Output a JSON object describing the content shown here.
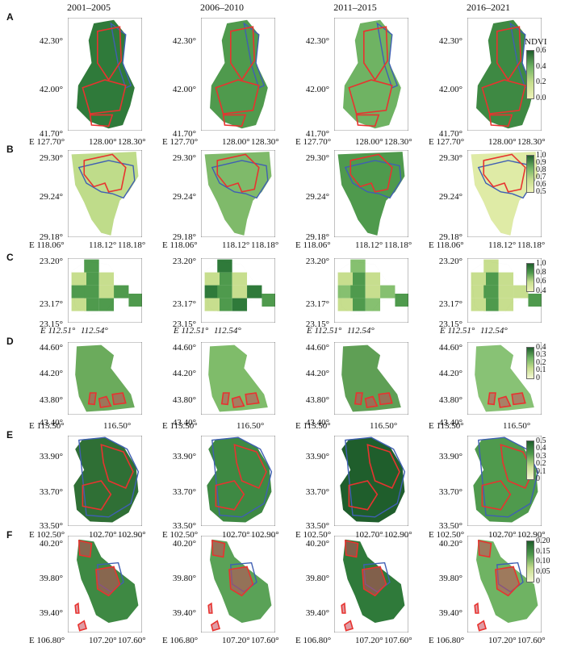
{
  "columns": [
    "2001–2005",
    "2006–2010",
    "2011–2015",
    "2016–2021"
  ],
  "colorbar_title": "NDVI",
  "colors": {
    "ndvi_dark": "#1f5e2c",
    "ndvi_mid": "#4f9a4d",
    "ndvi_light": "#c7de8e",
    "ndvi_pale": "#eef3b7",
    "boundary_black": "#111111",
    "boundary_red": "#e8332f",
    "boundary_blue": "#3f5fb3"
  },
  "rows": [
    {
      "letter": "A",
      "y_ticks": [
        "42.30°",
        "42.00°",
        "41.70°"
      ],
      "x_ticks": [
        "E 127.70°",
        "128.00°",
        "128.30°"
      ],
      "cb_ticks": [
        "0.6",
        "0.4",
        "0.2",
        "0.0"
      ],
      "show_title": true
    },
    {
      "letter": "B",
      "y_ticks": [
        "29.30°",
        "29.24°",
        "29.18°"
      ],
      "x_ticks": [
        "E 118.06°",
        "118.12°",
        "118.18°"
      ],
      "cb_ticks": [
        "1.0",
        "0.9",
        "0.8",
        "0.7",
        "0.6",
        "0.5"
      ],
      "show_title": false
    },
    {
      "letter": "C",
      "y_ticks": [
        "23.20°",
        "23.17°",
        "23.15°"
      ],
      "x_ticks": [
        "E 112.51°",
        "112.54°"
      ],
      "cb_ticks": [
        "1.0",
        "0.8",
        "0.6",
        "0.4"
      ],
      "show_title": false
    },
    {
      "letter": "D",
      "y_ticks": [
        "44.60°",
        "44.20°",
        "43.80°",
        "43.40°"
      ],
      "x_ticks": [
        "E 115.50°",
        "116.50°"
      ],
      "cb_ticks": [
        "0.4",
        "0.3",
        "0.2",
        "0.1",
        "0"
      ],
      "show_title": false
    },
    {
      "letter": "E",
      "y_ticks": [
        "33.90°",
        "33.70°",
        "33.50°"
      ],
      "x_ticks": [
        "E 102.50°",
        "102.70°",
        "102.90°"
      ],
      "cb_ticks": [
        "0.5",
        "0.4",
        "0.3",
        "0.2",
        "0.1",
        "0"
      ],
      "show_title": false
    },
    {
      "letter": "F",
      "y_ticks": [
        "40.20°",
        "39.80°",
        "39.40°"
      ],
      "x_ticks": [
        "E 106.80°",
        "107.20°",
        "107.60°"
      ],
      "cb_ticks": [
        "0.20",
        "0.15",
        "0.10",
        "0.05",
        "0"
      ],
      "show_title": false
    }
  ]
}
